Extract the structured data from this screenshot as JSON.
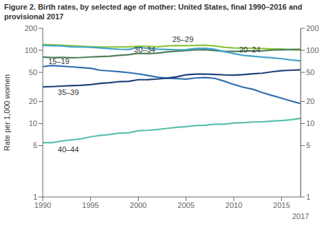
{
  "chart_data": {
    "type": "line",
    "title": "Figure 2. Birth rates, by selected age of mother: United States, final 1990–2016 and provisional 2017",
    "y_label": "Rate per 1,000 women",
    "log": "y",
    "grid": false,
    "xlim": [
      1990,
      2017
    ],
    "xticks": [
      1990,
      1995,
      2000,
      2005,
      2010,
      2015
    ],
    "ylim": [
      1,
      200
    ],
    "yticks": [
      1,
      5,
      10,
      20,
      50,
      100,
      200
    ],
    "y2lim": [
      1,
      200
    ],
    "y2ticks": [
      1,
      5,
      10,
      20,
      50,
      100,
      200
    ],
    "x": [
      1990,
      1991,
      1992,
      1993,
      1994,
      1995,
      1996,
      1997,
      1998,
      1999,
      2000,
      2001,
      2002,
      2003,
      2004,
      2005,
      2006,
      2007,
      2008,
      2009,
      2010,
      2011,
      2012,
      2013,
      2014,
      2015,
      2016,
      2017
    ],
    "series": [
      {
        "name": "25–29",
        "color": "#8dc63f",
        "values": [
          120.2,
          118.8,
          117.4,
          115.5,
          113.9,
          112.2,
          111.1,
          110.9,
          111.1,
          111.2,
          113.5,
          113.4,
          111.2,
          115.0,
          116.0,
          115.5,
          116.8,
          117.5,
          115.1,
          110.0,
          107.7,
          107.2,
          106.5,
          105.5,
          104.3,
          104.3,
          102.1,
          100.3
        ]
      },
      {
        "name": "30–34",
        "color": "#4e7d5a",
        "values": [
          80.8,
          79.5,
          79.9,
          79.2,
          79.8,
          81.1,
          82.1,
          83.0,
          85.3,
          87.1,
          91.2,
          90.1,
          91.5,
          95.1,
          97.0,
          99.4,
          101.5,
          101.9,
          99.3,
          96.8,
          96.5,
          97.0,
          98.0,
          98.0,
          100.8,
          101.5,
          102.7,
          103.0
        ]
      },
      {
        "name": "20–24",
        "color": "#40a4c8",
        "values": [
          116.5,
          115.7,
          114.6,
          111.3,
          111.0,
          109.8,
          107.8,
          105.3,
          103.4,
          102.7,
          109.7,
          106.2,
          103.6,
          102.6,
          101.7,
          102.2,
          105.9,
          106.4,
          103.0,
          96.0,
          90.0,
          85.3,
          83.1,
          81.0,
          79.0,
          76.8,
          73.8,
          71.8
        ]
      },
      {
        "name": "15–19",
        "color": "#2e6fae",
        "values": [
          59.9,
          62.1,
          60.7,
          59.6,
          58.2,
          56.8,
          53.5,
          52.3,
          51.1,
          49.6,
          47.7,
          45.3,
          43.0,
          41.6,
          41.1,
          40.5,
          41.9,
          42.5,
          41.5,
          37.9,
          34.2,
          31.3,
          29.4,
          26.5,
          24.2,
          22.3,
          20.3,
          18.8
        ]
      },
      {
        "name": "35–39",
        "color": "#1e3f7a",
        "values": [
          31.7,
          32.0,
          32.5,
          32.9,
          33.3,
          34.0,
          35.3,
          36.1,
          37.4,
          37.8,
          39.7,
          39.8,
          40.6,
          41.8,
          43.4,
          46.3,
          47.3,
          47.5,
          46.9,
          46.2,
          45.9,
          46.5,
          47.8,
          48.8,
          50.9,
          52.7,
          53.5,
          54.2
        ]
      },
      {
        "name": "40–44",
        "color": "#5bbfab",
        "values": [
          5.5,
          5.5,
          5.8,
          6.0,
          6.2,
          6.6,
          6.9,
          7.1,
          7.4,
          7.5,
          8.0,
          8.1,
          8.3,
          8.6,
          8.9,
          9.1,
          9.4,
          9.5,
          9.8,
          9.8,
          10.2,
          10.3,
          10.5,
          10.6,
          10.8,
          11.0,
          11.3,
          11.8
        ]
      }
    ],
    "annotations": [
      {
        "text": "25–29",
        "x": 2003.5,
        "y": 121
      },
      {
        "text": "30–34",
        "x": 1999.5,
        "y": 88
      },
      {
        "text": "20–24",
        "x": 2010.5,
        "y": 88
      },
      {
        "text": "15–19",
        "x": 1990.5,
        "y": 60.5
      },
      {
        "text": "35–39",
        "x": 1991.5,
        "y": 30.5
      },
      {
        "text": "40–44",
        "x": 1991.5,
        "y": 5.1
      },
      {
        "text": "2017",
        "x": 2017
      }
    ]
  }
}
